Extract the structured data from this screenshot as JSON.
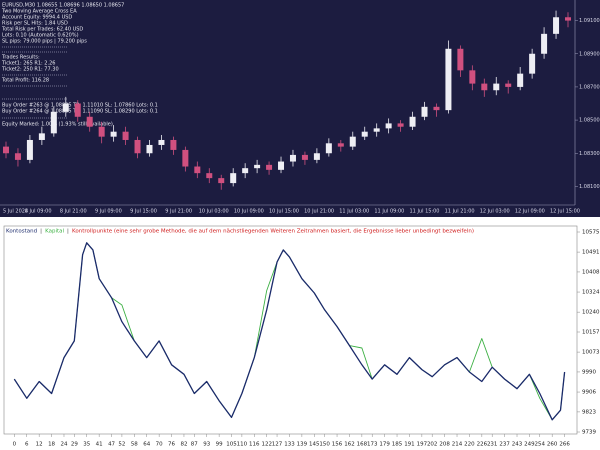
{
  "chart_data": [
    {
      "type": "candlestick",
      "info_lines": [
        "EURUSD,M30 1.08655 1.08696 1.08650 1.08657",
        "Two Moving Average Cross EA",
        "Account Equity: 9994.4 USD",
        "Risk per SL Hits: 1.84 USD",
        "Total Risk per Trades: 62.40 USD",
        "Lots: 0.10 (Automatic 0.620%)",
        "SL pips: 79.000 pips | 79.200 pips",
        "Trades Results:",
        "Ticket1: 265 R1: 2.26",
        "Ticket2: 250 R1: 77.30",
        "Total Profit: 116.28",
        "Buy Order #263 @ 1.08805 TP: 1.11010 SL: 1.07860 Lots: 0.1",
        "Buy Order #264 @ 1.08805 TP: 1.11090 SL: 1.08290 Lots: 0.1",
        "Equity Marked: 1.00% (1.93% still available)"
      ],
      "x_tick_labels": [
        "5 Jul 2024",
        "8 Jul 09:00",
        "8 Jul 21:00",
        "9 Jul 09:00",
        "9 Jul 15:00",
        "9 Jul 21:00",
        "10 Jul 03:00",
        "10 Jul 09:00",
        "10 Jul 15:00",
        "10 Jul 21:00",
        "11 Jul 03:00",
        "11 Jul 09:00",
        "11 Jul 15:00",
        "11 Jul 21:00",
        "12 Jul 03:00",
        "12 Jul 09:00",
        "12 Jul 15:00"
      ],
      "open": [
        1.0834,
        1.083,
        1.0826,
        1.0838,
        1.0842,
        1.0855,
        1.086,
        1.0852,
        1.0846,
        1.084,
        1.0843,
        1.0838,
        1.083,
        1.0835,
        1.0838,
        1.0832,
        1.0822,
        1.0818,
        1.0815,
        1.0812,
        1.0818,
        1.0821,
        1.0823,
        1.082,
        1.0825,
        1.0829,
        1.0826,
        1.083,
        1.0836,
        1.0834,
        1.084,
        1.0843,
        1.0845,
        1.0848,
        1.0846,
        1.0852,
        1.0858,
        1.0856,
        1.0893,
        1.088,
        1.0872,
        1.0868,
        1.0872,
        1.087,
        1.0878,
        1.089,
        1.0902,
        1.0912
      ],
      "high": [
        1.0837,
        1.0833,
        1.0841,
        1.0846,
        1.0858,
        1.0864,
        1.0862,
        1.0855,
        1.0849,
        1.0847,
        1.0846,
        1.084,
        1.0838,
        1.0841,
        1.084,
        1.0834,
        1.0825,
        1.0821,
        1.0817,
        1.0821,
        1.0824,
        1.0826,
        1.0825,
        1.0828,
        1.0832,
        1.0831,
        1.0833,
        1.0839,
        1.0838,
        1.0843,
        1.0846,
        1.0848,
        1.0851,
        1.085,
        1.0855,
        1.0861,
        1.086,
        1.0898,
        1.0895,
        1.0883,
        1.0875,
        1.0876,
        1.0874,
        1.0882,
        1.0893,
        1.0906,
        1.0916,
        1.0915
      ],
      "low": [
        1.0827,
        1.0822,
        1.0824,
        1.0835,
        1.084,
        1.0852,
        1.0849,
        1.0843,
        1.0836,
        1.0837,
        1.0835,
        1.0827,
        1.0828,
        1.0832,
        1.0829,
        1.0819,
        1.0815,
        1.0812,
        1.0808,
        1.081,
        1.0815,
        1.0818,
        1.0817,
        1.0818,
        1.0822,
        1.0823,
        1.0824,
        1.0828,
        1.0831,
        1.0832,
        1.0838,
        1.084,
        1.0842,
        1.0843,
        1.0844,
        1.085,
        1.0852,
        1.0854,
        1.0876,
        1.0868,
        1.0864,
        1.0865,
        1.0866,
        1.0868,
        1.0875,
        1.0887,
        1.0899,
        1.0906
      ],
      "close": [
        1.083,
        1.0826,
        1.0838,
        1.0842,
        1.0855,
        1.086,
        1.0852,
        1.0846,
        1.084,
        1.0843,
        1.0838,
        1.083,
        1.0835,
        1.0838,
        1.0832,
        1.0822,
        1.0818,
        1.0815,
        1.0812,
        1.0818,
        1.0821,
        1.0823,
        1.082,
        1.0825,
        1.0829,
        1.0826,
        1.083,
        1.0836,
        1.0834,
        1.084,
        1.0843,
        1.0845,
        1.0848,
        1.0846,
        1.0852,
        1.0858,
        1.0856,
        1.0893,
        1.088,
        1.0872,
        1.0868,
        1.0872,
        1.087,
        1.0878,
        1.089,
        1.0902,
        1.0912,
        1.091
      ],
      "up_color": "#eeeef4",
      "down_color": "#d0507f",
      "ylim": [
        1.08,
        1.092
      ],
      "yticks": [
        {
          "value": 1.081,
          "label": "1.08100"
        },
        {
          "value": 1.083,
          "label": "1.08300"
        },
        {
          "value": 1.085,
          "label": "1.08500"
        },
        {
          "value": 1.087,
          "label": "1.08700"
        },
        {
          "value": 1.089,
          "label": "1.08900"
        },
        {
          "value": 1.091,
          "label": "1.09100"
        }
      ]
    },
    {
      "type": "line",
      "legend_note": "Kontrollpunkte (eine sehr grobe Methode, die auf dem nächstliegenden Weiteren Zeitrahmen basiert, die Ergebnisse lieber unbedingt bezweifeln)",
      "x": [
        0,
        6,
        12,
        18,
        24,
        29,
        33,
        35,
        38,
        41,
        47,
        52,
        58,
        64,
        70,
        76,
        82,
        87,
        93,
        99,
        105,
        110,
        116,
        122,
        127,
        130,
        133,
        139,
        145,
        150,
        156,
        162,
        168,
        173,
        179,
        185,
        191,
        197,
        202,
        208,
        214,
        220,
        226,
        231,
        237,
        243,
        249,
        254,
        260,
        264,
        266
      ],
      "series": [
        {
          "name": "Kontostand",
          "color": "#1b2a6b",
          "values": [
            9960,
            9880,
            9950,
            9900,
            10050,
            10120,
            10480,
            10530,
            10500,
            10380,
            10300,
            10200,
            10120,
            10050,
            10120,
            10020,
            9980,
            9900,
            9950,
            9870,
            9800,
            9900,
            10050,
            10250,
            10450,
            10500,
            10470,
            10380,
            10320,
            10250,
            10180,
            10100,
            10020,
            9960,
            10020,
            9980,
            10050,
            10000,
            9970,
            10020,
            10050,
            9990,
            9950,
            10010,
            9960,
            9920,
            9980,
            9900,
            9790,
            9830,
            9990
          ]
        },
        {
          "name": "Kapital",
          "color": "#3cb043",
          "values": [
            9960,
            9880,
            9950,
            9900,
            10050,
            10120,
            10480,
            10530,
            10500,
            10380,
            10300,
            10270,
            10120,
            10050,
            10120,
            10020,
            9980,
            9900,
            9950,
            9870,
            9800,
            9900,
            10050,
            10330,
            10450,
            10500,
            10470,
            10380,
            10320,
            10250,
            10180,
            10100,
            10090,
            9960,
            10020,
            9980,
            10050,
            10000,
            9970,
            10020,
            10050,
            9990,
            10130,
            10010,
            9960,
            9920,
            9980,
            9880,
            9790,
            9830,
            9990
          ]
        }
      ],
      "xlim": [
        -5,
        272
      ],
      "ylim": [
        9739,
        10575
      ],
      "xticks": [
        0,
        6,
        12,
        18,
        24,
        29,
        35,
        41,
        47,
        52,
        58,
        64,
        70,
        76,
        82,
        87,
        93,
        99,
        105,
        110,
        116,
        122,
        127,
        133,
        139,
        145,
        150,
        156,
        162,
        168,
        173,
        179,
        185,
        191,
        197,
        202,
        208,
        214,
        220,
        226,
        231,
        237,
        243,
        249,
        254,
        260,
        266
      ],
      "yticks": [
        9739,
        9823,
        9906,
        9990,
        10073,
        10157,
        10240,
        10324,
        10408,
        10491,
        10575
      ],
      "grid": false
    }
  ]
}
